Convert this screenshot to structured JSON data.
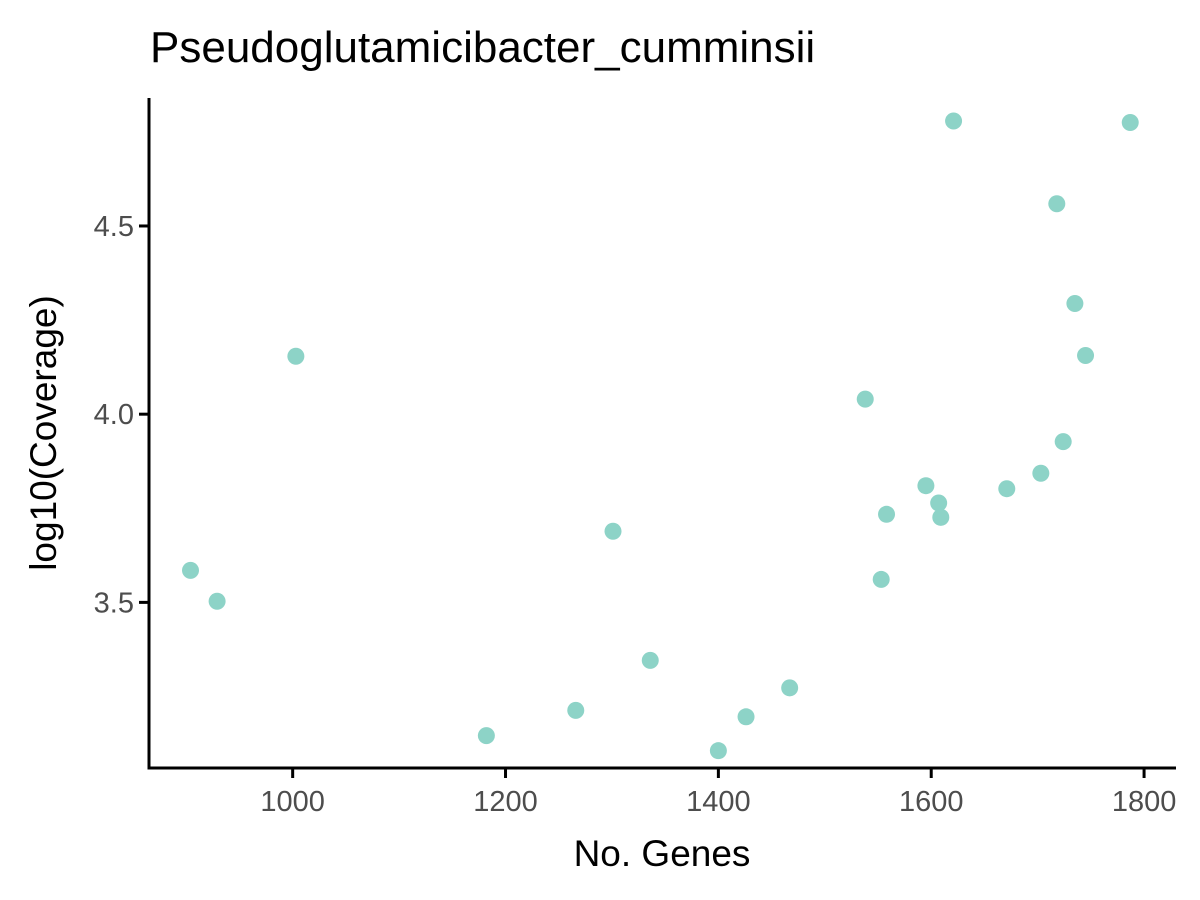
{
  "chart_data": {
    "type": "scatter",
    "title": "Pseudoglutamicibacter_cumminsii",
    "xlabel": "No. Genes",
    "ylabel": "log10(Coverage)",
    "xlim": [
      865,
      1830
    ],
    "ylim": [
      3.06,
      4.84
    ],
    "x_ticks": [
      1000,
      1200,
      1400,
      1600,
      1800
    ],
    "y_ticks": [
      3.5,
      4.0,
      4.5
    ],
    "x_tick_labels": [
      "1000",
      "1200",
      "1400",
      "1600",
      "1800"
    ],
    "y_tick_labels": [
      "3.5",
      "4.0",
      "4.5"
    ],
    "grid": false,
    "legend": "none",
    "point_color": "#8dd3c7",
    "points": [
      {
        "x": 904,
        "y": 3.585
      },
      {
        "x": 929,
        "y": 3.503
      },
      {
        "x": 1003,
        "y": 4.154
      },
      {
        "x": 1182,
        "y": 3.146
      },
      {
        "x": 1266,
        "y": 3.213
      },
      {
        "x": 1301,
        "y": 3.689
      },
      {
        "x": 1336,
        "y": 3.346
      },
      {
        "x": 1400,
        "y": 3.106
      },
      {
        "x": 1426,
        "y": 3.196
      },
      {
        "x": 1467,
        "y": 3.273
      },
      {
        "x": 1538,
        "y": 4.04
      },
      {
        "x": 1553,
        "y": 3.561
      },
      {
        "x": 1558,
        "y": 3.734
      },
      {
        "x": 1595,
        "y": 3.81
      },
      {
        "x": 1607,
        "y": 3.764
      },
      {
        "x": 1609,
        "y": 3.726
      },
      {
        "x": 1621,
        "y": 4.779
      },
      {
        "x": 1671,
        "y": 3.802
      },
      {
        "x": 1703,
        "y": 3.843
      },
      {
        "x": 1718,
        "y": 4.559
      },
      {
        "x": 1724,
        "y": 3.927
      },
      {
        "x": 1735,
        "y": 4.294
      },
      {
        "x": 1745,
        "y": 4.156
      },
      {
        "x": 1787,
        "y": 4.775
      }
    ]
  }
}
